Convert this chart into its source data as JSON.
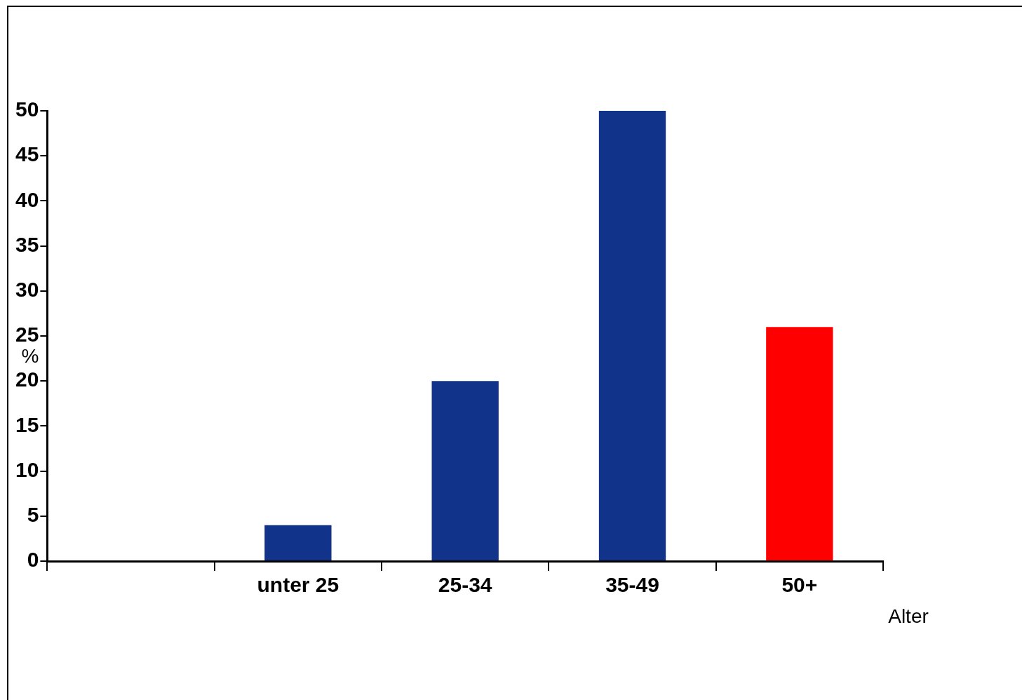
{
  "chart_data": {
    "type": "bar",
    "xlabel": "Alter",
    "ylabel": "%",
    "categories": [
      null,
      "unter 25",
      "25-34",
      "35-49",
      "50+"
    ],
    "values": [
      null,
      4,
      20,
      50,
      26
    ],
    "colors": [
      "#12338a",
      "#12338a",
      "#12338a",
      "#12338a",
      "#ff0000"
    ],
    "ylim": [
      0,
      50
    ],
    "yticks": [
      0,
      5,
      10,
      15,
      20,
      25,
      30,
      35,
      40,
      45,
      50
    ]
  }
}
